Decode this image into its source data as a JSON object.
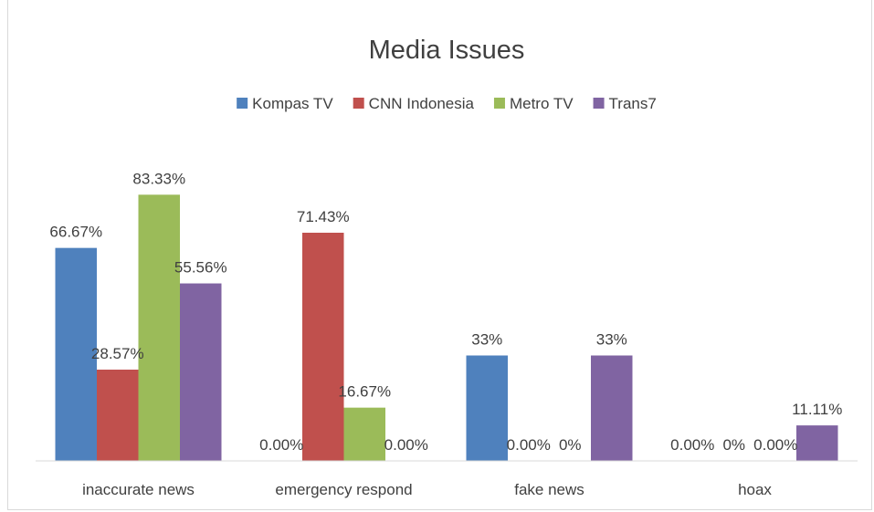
{
  "chart_data": {
    "type": "bar",
    "title": "Media Issues",
    "categories": [
      "inaccurate news",
      "emergency respond",
      "fake news",
      "hoax"
    ],
    "series": [
      {
        "name": "Kompas TV",
        "color": "#4f81bd",
        "values": [
          66.67,
          0,
          33,
          0
        ],
        "labels": [
          "66.67%",
          "0.00%",
          "33%",
          "0.00%"
        ]
      },
      {
        "name": "CNN Indonesia",
        "color": "#c0504d",
        "values": [
          28.57,
          71.43,
          0,
          0
        ],
        "labels": [
          "28.57%",
          "71.43%",
          "0.00%",
          "0%"
        ]
      },
      {
        "name": "Metro TV",
        "color": "#9bbb59",
        "values": [
          83.33,
          16.67,
          0,
          0
        ],
        "labels": [
          "83.33%",
          "16.67%",
          "0%",
          "0.00%"
        ]
      },
      {
        "name": "Trans7",
        "color": "#8064a2",
        "values": [
          55.56,
          0,
          33,
          11.11
        ],
        "labels": [
          "55.56%",
          "0.00%",
          "33%",
          "11.11%"
        ]
      }
    ],
    "ylim": [
      0,
      100
    ],
    "legend": "top",
    "grid": false
  }
}
